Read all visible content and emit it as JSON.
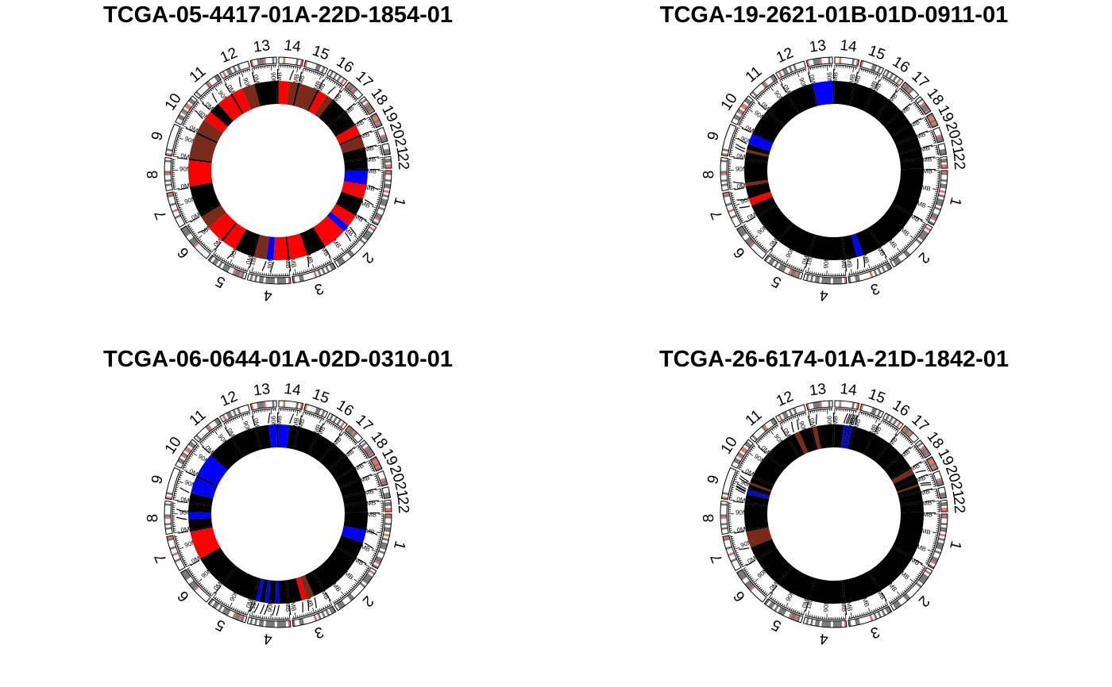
{
  "colors": {
    "loss": "#0000ff",
    "gain": "#ff0000",
    "amp": "#7a2a1a",
    "neutral": "#000000",
    "band_light": "#ffffff",
    "band_dark": "#777777",
    "centromere": "#e07070"
  },
  "chart_data": [
    {
      "type": "circos",
      "title": "TCGA-05-4417-01A-22D-1854-01",
      "segments": [
        {
          "chr": "1",
          "start": 0,
          "end": 80,
          "state": "loss"
        },
        {
          "chr": "1",
          "start": 80,
          "end": 160,
          "state": "gain"
        },
        {
          "chr": "1",
          "start": 160,
          "end": 249,
          "state": "neutral"
        },
        {
          "chr": "2",
          "start": 0,
          "end": 70,
          "state": "gain"
        },
        {
          "chr": "2",
          "start": 70,
          "end": 110,
          "state": "loss"
        },
        {
          "chr": "2",
          "start": 110,
          "end": 243,
          "state": "gain"
        },
        {
          "chr": "3",
          "start": 0,
          "end": 100,
          "state": "neutral"
        },
        {
          "chr": "3",
          "start": 100,
          "end": 198,
          "state": "gain"
        },
        {
          "chr": "4",
          "start": 0,
          "end": 80,
          "state": "gain"
        },
        {
          "chr": "4",
          "start": 80,
          "end": 120,
          "state": "loss"
        },
        {
          "chr": "4",
          "start": 120,
          "end": 191,
          "state": "amp"
        },
        {
          "chr": "5",
          "start": 0,
          "end": 100,
          "state": "neutral"
        },
        {
          "chr": "5",
          "start": 100,
          "end": 181,
          "state": "gain"
        },
        {
          "chr": "6",
          "start": 0,
          "end": 100,
          "state": "gain"
        },
        {
          "chr": "6",
          "start": 100,
          "end": 171,
          "state": "amp"
        },
        {
          "chr": "7",
          "start": 0,
          "end": 159,
          "state": "neutral"
        },
        {
          "chr": "8",
          "start": 0,
          "end": 146,
          "state": "gain"
        },
        {
          "chr": "9",
          "start": 0,
          "end": 141,
          "state": "amp"
        },
        {
          "chr": "10",
          "start": 0,
          "end": 80,
          "state": "amp"
        },
        {
          "chr": "10",
          "start": 80,
          "end": 136,
          "state": "gain"
        },
        {
          "chr": "11",
          "start": 0,
          "end": 50,
          "state": "neutral"
        },
        {
          "chr": "11",
          "start": 50,
          "end": 135,
          "state": "gain"
        },
        {
          "chr": "12",
          "start": 0,
          "end": 60,
          "state": "gain"
        },
        {
          "chr": "12",
          "start": 60,
          "end": 134,
          "state": "amp"
        },
        {
          "chr": "13",
          "start": 0,
          "end": 115,
          "state": "neutral"
        },
        {
          "chr": "14",
          "start": 0,
          "end": 60,
          "state": "gain"
        },
        {
          "chr": "14",
          "start": 60,
          "end": 107,
          "state": "amp"
        },
        {
          "chr": "15",
          "start": 0,
          "end": 103,
          "state": "amp"
        },
        {
          "chr": "16",
          "start": 0,
          "end": 50,
          "state": "gain"
        },
        {
          "chr": "16",
          "start": 50,
          "end": 90,
          "state": "amp"
        },
        {
          "chr": "17",
          "start": 0,
          "end": 81,
          "state": "neutral"
        },
        {
          "chr": "18",
          "start": 0,
          "end": 78,
          "state": "neutral"
        },
        {
          "chr": "19",
          "start": 0,
          "end": 59,
          "state": "gain"
        },
        {
          "chr": "20",
          "start": 0,
          "end": 63,
          "state": "amp"
        },
        {
          "chr": "21",
          "start": 0,
          "end": 48,
          "state": "neutral"
        },
        {
          "chr": "22",
          "start": 0,
          "end": 51,
          "state": "neutral"
        }
      ]
    },
    {
      "type": "circos",
      "title": "TCGA-19-2621-01B-01D-0911-01",
      "segments": [
        {
          "chr": "1",
          "start": 0,
          "end": 249,
          "state": "neutral"
        },
        {
          "chr": "2",
          "start": 0,
          "end": 243,
          "state": "neutral"
        },
        {
          "chr": "3",
          "start": 0,
          "end": 100,
          "state": "neutral"
        },
        {
          "chr": "3",
          "start": 100,
          "end": 135,
          "state": "loss"
        },
        {
          "chr": "3",
          "start": 135,
          "end": 198,
          "state": "neutral"
        },
        {
          "chr": "4",
          "start": 0,
          "end": 191,
          "state": "neutral"
        },
        {
          "chr": "5",
          "start": 0,
          "end": 181,
          "state": "neutral"
        },
        {
          "chr": "6",
          "start": 0,
          "end": 171,
          "state": "neutral"
        },
        {
          "chr": "7",
          "start": 0,
          "end": 60,
          "state": "neutral"
        },
        {
          "chr": "7",
          "start": 60,
          "end": 100,
          "state": "gain"
        },
        {
          "chr": "7",
          "start": 100,
          "end": 159,
          "state": "neutral"
        },
        {
          "chr": "8",
          "start": 0,
          "end": 20,
          "state": "amp"
        },
        {
          "chr": "8",
          "start": 20,
          "end": 146,
          "state": "neutral"
        },
        {
          "chr": "9",
          "start": 0,
          "end": 35,
          "state": "neutral"
        },
        {
          "chr": "9",
          "start": 35,
          "end": 50,
          "state": "amp"
        },
        {
          "chr": "9",
          "start": 50,
          "end": 80,
          "state": "neutral"
        },
        {
          "chr": "9",
          "start": 80,
          "end": 141,
          "state": "loss"
        },
        {
          "chr": "10",
          "start": 0,
          "end": 136,
          "state": "neutral"
        },
        {
          "chr": "11",
          "start": 0,
          "end": 135,
          "state": "neutral"
        },
        {
          "chr": "12",
          "start": 0,
          "end": 134,
          "state": "neutral"
        },
        {
          "chr": "13",
          "start": 0,
          "end": 115,
          "state": "loss"
        },
        {
          "chr": "14",
          "start": 0,
          "end": 107,
          "state": "neutral"
        },
        {
          "chr": "15",
          "start": 0,
          "end": 103,
          "state": "neutral"
        },
        {
          "chr": "16",
          "start": 0,
          "end": 90,
          "state": "neutral"
        },
        {
          "chr": "17",
          "start": 0,
          "end": 81,
          "state": "neutral"
        },
        {
          "chr": "18",
          "start": 0,
          "end": 78,
          "state": "neutral"
        },
        {
          "chr": "19",
          "start": 0,
          "end": 59,
          "state": "neutral"
        },
        {
          "chr": "20",
          "start": 0,
          "end": 63,
          "state": "neutral"
        },
        {
          "chr": "21",
          "start": 0,
          "end": 48,
          "state": "neutral"
        },
        {
          "chr": "22",
          "start": 0,
          "end": 51,
          "state": "neutral"
        }
      ]
    },
    {
      "type": "circos",
      "title": "TCGA-06-0644-01A-02D-0310-01",
      "segments": [
        {
          "chr": "1",
          "start": 0,
          "end": 90,
          "state": "neutral"
        },
        {
          "chr": "1",
          "start": 90,
          "end": 160,
          "state": "loss"
        },
        {
          "chr": "1",
          "start": 160,
          "end": 249,
          "state": "neutral"
        },
        {
          "chr": "2",
          "start": 0,
          "end": 243,
          "state": "neutral"
        },
        {
          "chr": "3",
          "start": 0,
          "end": 60,
          "state": "neutral"
        },
        {
          "chr": "3",
          "start": 60,
          "end": 100,
          "state": "amp"
        },
        {
          "chr": "3",
          "start": 100,
          "end": 130,
          "state": "gain"
        },
        {
          "chr": "3",
          "start": 130,
          "end": 198,
          "state": "neutral"
        },
        {
          "chr": "4",
          "start": 0,
          "end": 50,
          "state": "neutral"
        },
        {
          "chr": "4",
          "start": 50,
          "end": 70,
          "state": "loss"
        },
        {
          "chr": "4",
          "start": 70,
          "end": 110,
          "state": "neutral"
        },
        {
          "chr": "4",
          "start": 110,
          "end": 130,
          "state": "loss"
        },
        {
          "chr": "4",
          "start": 130,
          "end": 160,
          "state": "neutral"
        },
        {
          "chr": "4",
          "start": 160,
          "end": 181,
          "state": "loss"
        },
        {
          "chr": "4",
          "start": 181,
          "end": 191,
          "state": "neutral"
        },
        {
          "chr": "5",
          "start": 0,
          "end": 181,
          "state": "neutral"
        },
        {
          "chr": "6",
          "start": 0,
          "end": 171,
          "state": "neutral"
        },
        {
          "chr": "7",
          "start": 0,
          "end": 159,
          "state": "gain"
        },
        {
          "chr": "8",
          "start": 0,
          "end": 60,
          "state": "neutral"
        },
        {
          "chr": "8",
          "start": 60,
          "end": 100,
          "state": "loss"
        },
        {
          "chr": "8",
          "start": 100,
          "end": 146,
          "state": "neutral"
        },
        {
          "chr": "9",
          "start": 0,
          "end": 50,
          "state": "neutral"
        },
        {
          "chr": "9",
          "start": 50,
          "end": 141,
          "state": "loss"
        },
        {
          "chr": "10",
          "start": 0,
          "end": 136,
          "state": "loss"
        },
        {
          "chr": "11",
          "start": 0,
          "end": 135,
          "state": "neutral"
        },
        {
          "chr": "12",
          "start": 0,
          "end": 134,
          "state": "neutral"
        },
        {
          "chr": "13",
          "start": 0,
          "end": 70,
          "state": "neutral"
        },
        {
          "chr": "13",
          "start": 70,
          "end": 115,
          "state": "loss"
        },
        {
          "chr": "14",
          "start": 0,
          "end": 60,
          "state": "loss"
        },
        {
          "chr": "14",
          "start": 60,
          "end": 107,
          "state": "neutral"
        },
        {
          "chr": "15",
          "start": 0,
          "end": 103,
          "state": "neutral"
        },
        {
          "chr": "16",
          "start": 0,
          "end": 90,
          "state": "neutral"
        },
        {
          "chr": "17",
          "start": 0,
          "end": 81,
          "state": "neutral"
        },
        {
          "chr": "18",
          "start": 0,
          "end": 78,
          "state": "neutral"
        },
        {
          "chr": "19",
          "start": 0,
          "end": 59,
          "state": "neutral"
        },
        {
          "chr": "20",
          "start": 0,
          "end": 63,
          "state": "neutral"
        },
        {
          "chr": "21",
          "start": 0,
          "end": 48,
          "state": "neutral"
        },
        {
          "chr": "22",
          "start": 0,
          "end": 51,
          "state": "neutral"
        }
      ]
    },
    {
      "type": "circos",
      "title": "TCGA-26-6174-01A-21D-1842-01",
      "segments": [
        {
          "chr": "1",
          "start": 0,
          "end": 249,
          "state": "neutral"
        },
        {
          "chr": "2",
          "start": 0,
          "end": 243,
          "state": "neutral"
        },
        {
          "chr": "3",
          "start": 0,
          "end": 198,
          "state": "neutral"
        },
        {
          "chr": "4",
          "start": 0,
          "end": 191,
          "state": "neutral"
        },
        {
          "chr": "5",
          "start": 0,
          "end": 181,
          "state": "neutral"
        },
        {
          "chr": "6",
          "start": 0,
          "end": 171,
          "state": "neutral"
        },
        {
          "chr": "7",
          "start": 0,
          "end": 70,
          "state": "neutral"
        },
        {
          "chr": "7",
          "start": 70,
          "end": 159,
          "state": "amp"
        },
        {
          "chr": "8",
          "start": 0,
          "end": 146,
          "state": "neutral"
        },
        {
          "chr": "9",
          "start": 0,
          "end": 45,
          "state": "neutral"
        },
        {
          "chr": "9",
          "start": 45,
          "end": 55,
          "state": "loss"
        },
        {
          "chr": "9",
          "start": 55,
          "end": 60,
          "state": "neutral"
        },
        {
          "chr": "9",
          "start": 60,
          "end": 70,
          "state": "loss"
        },
        {
          "chr": "9",
          "start": 70,
          "end": 100,
          "state": "neutral"
        },
        {
          "chr": "9",
          "start": 100,
          "end": 112,
          "state": "amp"
        },
        {
          "chr": "9",
          "start": 112,
          "end": 141,
          "state": "neutral"
        },
        {
          "chr": "10",
          "start": 0,
          "end": 136,
          "state": "neutral"
        },
        {
          "chr": "11",
          "start": 0,
          "end": 135,
          "state": "neutral"
        },
        {
          "chr": "12",
          "start": 0,
          "end": 40,
          "state": "neutral"
        },
        {
          "chr": "12",
          "start": 40,
          "end": 70,
          "state": "amp"
        },
        {
          "chr": "12",
          "start": 70,
          "end": 134,
          "state": "neutral"
        },
        {
          "chr": "13",
          "start": 0,
          "end": 25,
          "state": "amp"
        },
        {
          "chr": "13",
          "start": 25,
          "end": 115,
          "state": "neutral"
        },
        {
          "chr": "14",
          "start": 0,
          "end": 50,
          "state": "neutral"
        },
        {
          "chr": "14",
          "start": 50,
          "end": 62,
          "state": "loss"
        },
        {
          "chr": "14",
          "start": 62,
          "end": 70,
          "state": "neutral"
        },
        {
          "chr": "14",
          "start": 70,
          "end": 80,
          "state": "loss"
        },
        {
          "chr": "14",
          "start": 80,
          "end": 88,
          "state": "neutral"
        },
        {
          "chr": "14",
          "start": 88,
          "end": 98,
          "state": "loss"
        },
        {
          "chr": "14",
          "start": 98,
          "end": 107,
          "state": "neutral"
        },
        {
          "chr": "15",
          "start": 0,
          "end": 103,
          "state": "neutral"
        },
        {
          "chr": "16",
          "start": 0,
          "end": 90,
          "state": "neutral"
        },
        {
          "chr": "17",
          "start": 0,
          "end": 81,
          "state": "neutral"
        },
        {
          "chr": "18",
          "start": 0,
          "end": 78,
          "state": "neutral"
        },
        {
          "chr": "19",
          "start": 0,
          "end": 30,
          "state": "amp"
        },
        {
          "chr": "19",
          "start": 30,
          "end": 59,
          "state": "neutral"
        },
        {
          "chr": "20",
          "start": 0,
          "end": 25,
          "state": "neutral"
        },
        {
          "chr": "20",
          "start": 25,
          "end": 35,
          "state": "amp"
        },
        {
          "chr": "20",
          "start": 35,
          "end": 63,
          "state": "neutral"
        },
        {
          "chr": "21",
          "start": 0,
          "end": 48,
          "state": "neutral"
        },
        {
          "chr": "22",
          "start": 0,
          "end": 51,
          "state": "neutral"
        }
      ]
    }
  ],
  "chromosomes": [
    {
      "name": "1",
      "length": 249
    },
    {
      "name": "2",
      "length": 243
    },
    {
      "name": "3",
      "length": 198
    },
    {
      "name": "4",
      "length": 191
    },
    {
      "name": "5",
      "length": 181
    },
    {
      "name": "6",
      "length": 171
    },
    {
      "name": "7",
      "length": 159
    },
    {
      "name": "8",
      "length": 146
    },
    {
      "name": "9",
      "length": 141
    },
    {
      "name": "10",
      "length": 136
    },
    {
      "name": "11",
      "length": 135
    },
    {
      "name": "12",
      "length": 134
    },
    {
      "name": "13",
      "length": 115
    },
    {
      "name": "14",
      "length": 107
    },
    {
      "name": "15",
      "length": 103
    },
    {
      "name": "16",
      "length": 90
    },
    {
      "name": "17",
      "length": 81
    },
    {
      "name": "18",
      "length": 78
    },
    {
      "name": "19",
      "length": 59
    },
    {
      "name": "20",
      "length": 63
    },
    {
      "name": "21",
      "length": 48
    },
    {
      "name": "22",
      "length": 51
    }
  ],
  "mb_tick_labels": [
    "0MB",
    "90MB",
    "180MB"
  ]
}
